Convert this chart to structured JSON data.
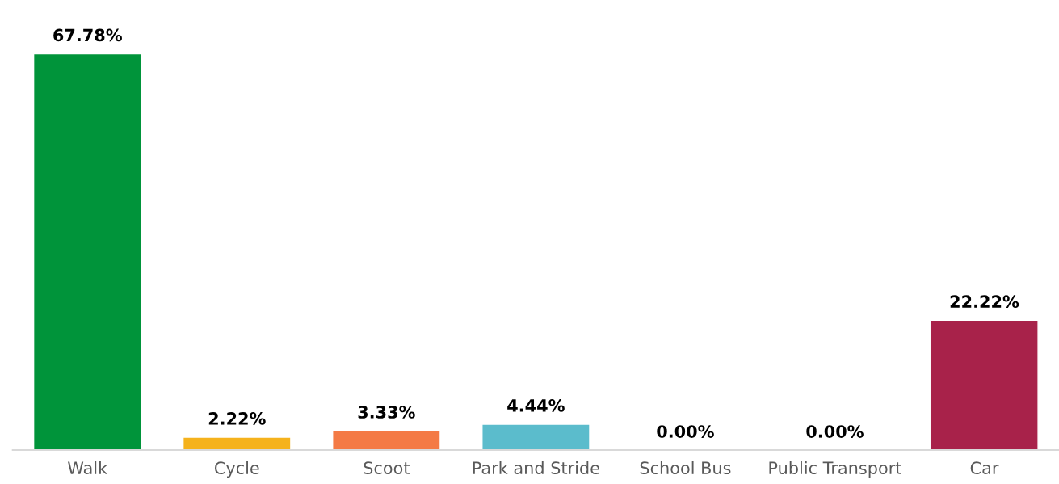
{
  "chart_data": {
    "type": "bar",
    "categories": [
      "Walk",
      "Cycle",
      "Scoot",
      "Park and Stride",
      "School Bus",
      "Public Transport",
      "Car"
    ],
    "values": [
      67.78,
      2.22,
      3.33,
      4.44,
      0.0,
      0.0,
      22.22
    ],
    "colors": [
      "#00943a",
      "#f5b21c",
      "#f47a45",
      "#5bbccc",
      null,
      null,
      "#a8224a"
    ],
    "value_labels": [
      "67.78%",
      "2.22%",
      "3.33%",
      "4.44%",
      "0.00%",
      "0.00%",
      "22.22%"
    ],
    "grid": false,
    "legend": false
  }
}
